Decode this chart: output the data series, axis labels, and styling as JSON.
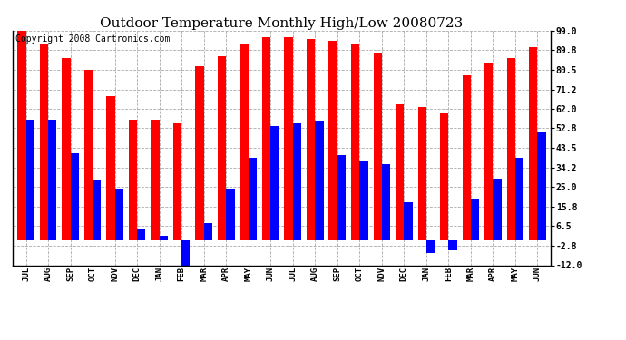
{
  "title": "Outdoor Temperature Monthly High/Low 20080723",
  "copyright": "Copyright 2008 Cartronics.com",
  "months": [
    "JUL",
    "AUG",
    "SEP",
    "OCT",
    "NOV",
    "DEC",
    "JAN",
    "FEB",
    "MAR",
    "APR",
    "MAY",
    "JUN",
    "JUL",
    "AUG",
    "SEP",
    "OCT",
    "NOV",
    "DEC",
    "JAN",
    "FEB",
    "MAR",
    "APR",
    "MAY",
    "JUN"
  ],
  "highs": [
    99.0,
    93.0,
    86.0,
    80.5,
    68.0,
    57.0,
    57.0,
    55.0,
    82.0,
    87.0,
    93.0,
    96.0,
    96.0,
    95.0,
    94.0,
    93.0,
    88.0,
    64.0,
    63.0,
    60.0,
    78.0,
    84.0,
    86.0,
    91.0
  ],
  "lows": [
    57.0,
    57.0,
    41.0,
    28.0,
    24.0,
    5.0,
    2.0,
    -13.0,
    8.0,
    24.0,
    39.0,
    54.0,
    55.0,
    56.0,
    40.0,
    37.0,
    36.0,
    18.0,
    -6.0,
    -5.0,
    19.0,
    29.0,
    39.0,
    51.0
  ],
  "high_color": "#ff0000",
  "low_color": "#0000ff",
  "bg_color": "#ffffff",
  "grid_color": "#aaaaaa",
  "yticks": [
    99.0,
    89.8,
    80.5,
    71.2,
    62.0,
    52.8,
    43.5,
    34.2,
    25.0,
    15.8,
    6.5,
    -2.8,
    -12.0
  ],
  "ylim": [
    -12.0,
    99.0
  ],
  "title_fontsize": 11,
  "copyright_fontsize": 7
}
